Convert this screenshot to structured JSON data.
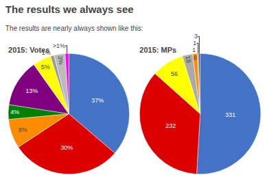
{
  "title": "The results we always see",
  "subtitle": "The results are nearly always shown like this:",
  "chart_data": [
    {
      "type": "pie",
      "title": "2015: Votes",
      "categories": [
        null,
        null,
        null,
        null,
        null,
        null,
        null,
        null,
        null
      ],
      "values": [
        37,
        30,
        8,
        4,
        13,
        5,
        1,
        3,
        1
      ],
      "value_labels": [
        "37%",
        "30%",
        "8%",
        "4%",
        "13%",
        "5%",
        "1%",
        "3%",
        ">1%"
      ],
      "colors": [
        "#4472C4",
        "#DD0000",
        "#FF8C00",
        "#008000",
        "#800080",
        "#FFFF00",
        "#999999",
        "#BBBBBB",
        "#FF00FF"
      ],
      "data_labels": true
    },
    {
      "type": "pie",
      "title": "2015: MPs",
      "categories": [
        null,
        null,
        null,
        null,
        null,
        null,
        null,
        null
      ],
      "values": [
        331,
        232,
        56,
        18,
        8,
        1,
        1,
        3
      ],
      "colors": [
        "#4472C4",
        "#DD0000",
        "#FFFF00",
        "#AAAAAA",
        "#FF8C00",
        "#008000",
        "#800080",
        "#555555"
      ],
      "data_labels": true
    }
  ]
}
